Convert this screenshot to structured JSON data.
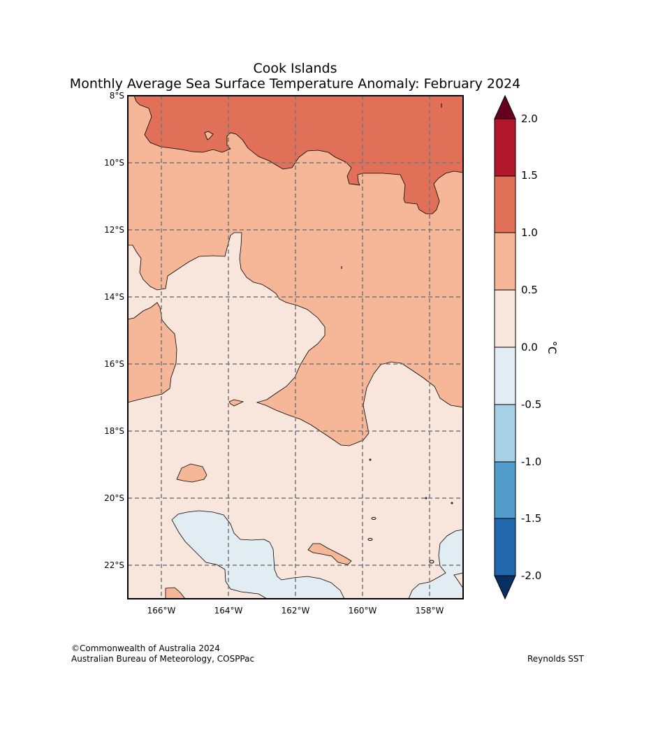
{
  "title": {
    "line1": "Cook Islands",
    "line2": "Monthly Average Sea Surface Temperature Anomaly: February 2024"
  },
  "map": {
    "lat_labels": [
      "8°S",
      "10°S",
      "12°S",
      "14°S",
      "16°S",
      "18°S",
      "20°S",
      "22°S"
    ],
    "lon_labels": [
      "166°W",
      "164°W",
      "162°W",
      "160°W",
      "158°W"
    ],
    "gridline_style": "dashed gray"
  },
  "colorbar": {
    "unit": "°C",
    "ticks": [
      "2.0",
      "1.5",
      "1.0",
      "0.5",
      "0.0",
      "-0.5",
      "-1.0",
      "-1.5",
      "-2.0"
    ],
    "colors": {
      "above_2.0": "#67001f",
      "1.5_to_2.0": "#b2182b",
      "1.0_to_1.5": "#e07058",
      "0.5_to_1.0": "#f6b799",
      "0.0_to_0.5": "#f8e6dc",
      "-0.5_to_0.0": "#e1edf3",
      "-1.0_to_-0.5": "#a8d0e6",
      "-1.5_to_-1.0": "#539dcc",
      "-2.0_to_-1.5": "#2268ad",
      "below_-2.0": "#053061"
    }
  },
  "footer": {
    "copyright": "©Commonwealth of Australia 2024",
    "agency": "Australian Bureau of Meteorology, COSPPac",
    "source": "Reynolds SST"
  }
}
